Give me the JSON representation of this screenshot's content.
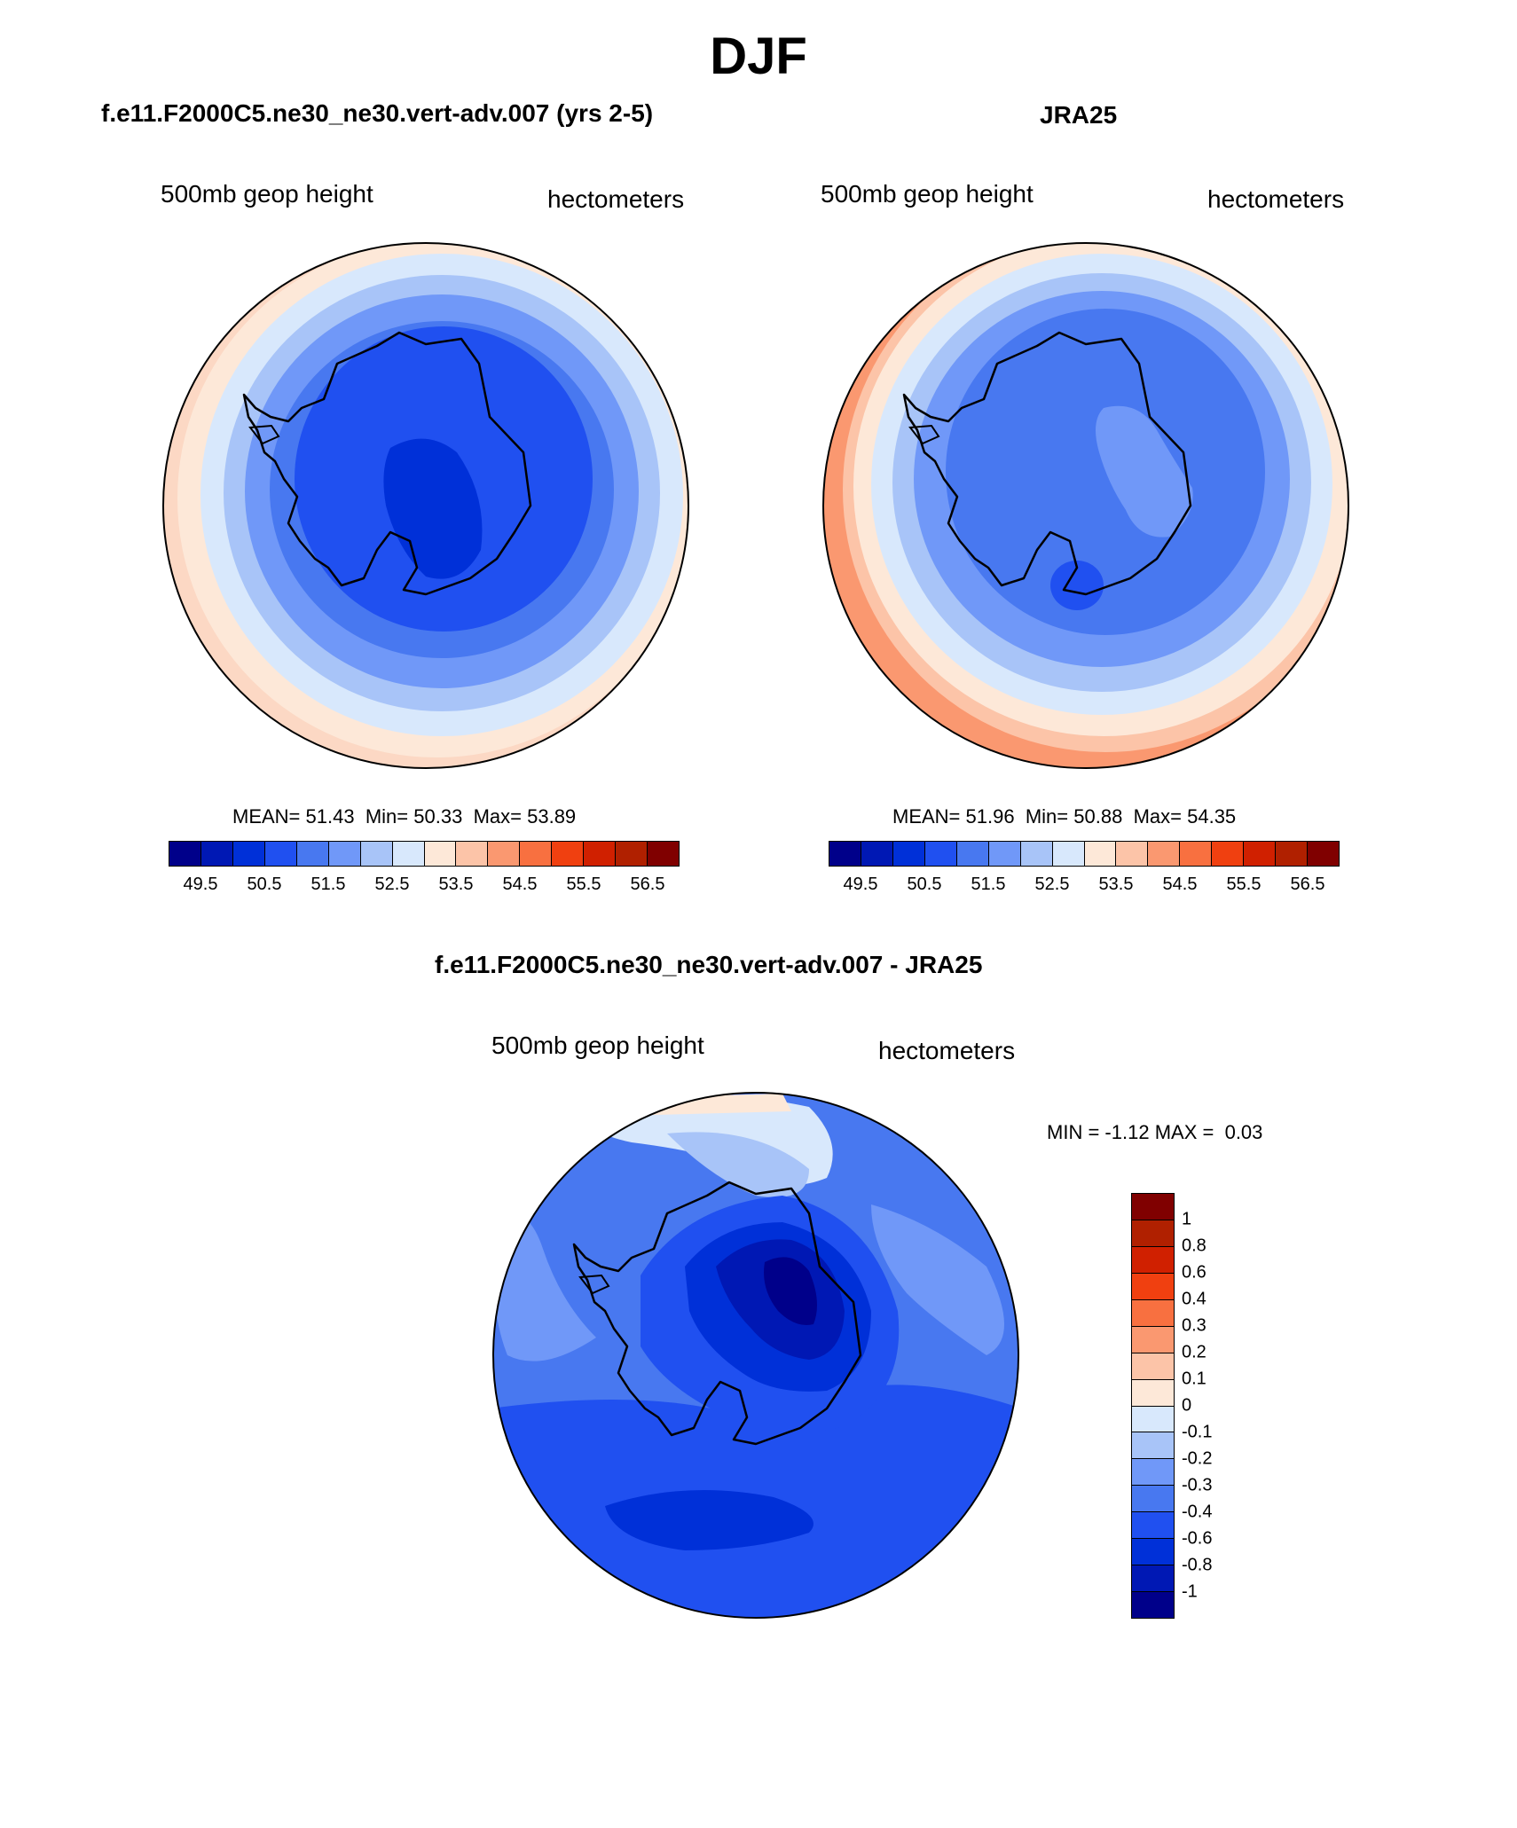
{
  "season": "DJF",
  "palette": [
    "#00008a",
    "#0018b4",
    "#0030d8",
    "#2050f0",
    "#4878f0",
    "#7098f8",
    "#a8c4f8",
    "#d8e8fc",
    "#fde8d8",
    "#fcc4a8",
    "#fa9870",
    "#f87040",
    "#f04010",
    "#d02000",
    "#b02000",
    "#800000"
  ],
  "panels": {
    "model": {
      "title": "f.e11.F2000C5.ne30_ne30.vert-adv.007 (yrs 2-5)",
      "field_label": "500mb geop height",
      "units_label": "hectometers",
      "stats": {
        "mean_label": "MEAN=",
        "mean": "51.43",
        "min_label": "Min=",
        "min": "50.33",
        "max_label": "Max=",
        "max": "53.89"
      }
    },
    "obs": {
      "title": "JRA25",
      "field_label": "500mb geop height",
      "units_label": "hectometers",
      "stats": {
        "mean_label": "MEAN=",
        "mean": "51.96",
        "min_label": "Min=",
        "min": "50.88",
        "max_label": "Max=",
        "max": "54.35"
      }
    },
    "diff": {
      "title": "f.e11.F2000C5.ne30_ne30.vert-adv.007 - JRA25",
      "field_label": "500mb geop height",
      "units_label": "hectometers",
      "stats": {
        "min_label": "MIN =",
        "min": "-1.12",
        "max_label": "MAX =",
        "max": "0.03"
      }
    }
  },
  "colorbar_main": {
    "ticks": [
      "49.5",
      "50.5",
      "51.5",
      "52.5",
      "53.5",
      "54.5",
      "55.5",
      "56.5"
    ]
  },
  "colorbar_diff": {
    "ticks": [
      "1",
      "0.8",
      "0.6",
      "0.4",
      "0.3",
      "0.2",
      "0.1",
      "0",
      "-0.1",
      "-0.2",
      "-0.3",
      "-0.4",
      "-0.6",
      "-0.8",
      "-1"
    ]
  }
}
